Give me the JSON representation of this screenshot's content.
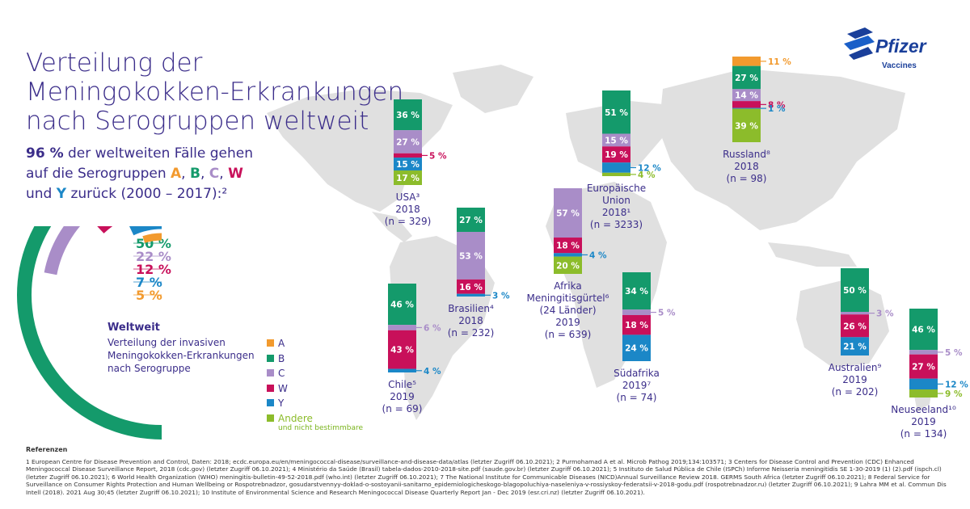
{
  "title": "Verteilung der Meningokokken-Erkrankungen nach Serogruppen weltweit",
  "subtitle": {
    "pct": "96 %",
    "text1": " der weltweiten Fälle gehen auf die Serogruppen ",
    "A": "A",
    "B": "B",
    "C": "C",
    "W": "W",
    "Y": "Y",
    "text2": " zurück (2000 – 2017):²"
  },
  "logo": {
    "word": "Pfizer",
    "sub": "Vaccines"
  },
  "colors": {
    "A": "#f29a2e",
    "B": "#149a6b",
    "C": "#a98dc8",
    "W": "#c8105a",
    "Y": "#1b87c7",
    "Andere": "#8cbc2b",
    "teal": "#149a6b",
    "map": "#dcdcdc"
  },
  "world": {
    "heading": "Weltweit",
    "text": "Verteilung der invasiven Meningokokken-Erkrankungen nach Serogruppe",
    "labels": [
      "50 %",
      "22 %",
      "12 %",
      "7 %",
      "5 %"
    ]
  },
  "legend": [
    {
      "key": "A",
      "label": "A"
    },
    {
      "key": "B",
      "label": "B"
    },
    {
      "key": "C",
      "label": "C"
    },
    {
      "key": "W",
      "label": "W"
    },
    {
      "key": "Y",
      "label": "Y"
    },
    {
      "key": "Andere",
      "label": "Andere",
      "sub": "und nicht bestimmbare"
    }
  ],
  "chart_data": {
    "type": "bar",
    "title": "Verteilung der Meningokokken-Erkrankungen nach Serogruppen weltweit",
    "world_distribution": {
      "categories": [
        "B",
        "C",
        "W",
        "Y",
        "A"
      ],
      "values": [
        50,
        22,
        12,
        7,
        5
      ]
    },
    "countries": [
      {
        "id": "usa",
        "caption": [
          "USA³",
          "2018",
          "(n = 329)"
        ],
        "segments": [
          {
            "key": "B",
            "value": 36,
            "label": "36 %"
          },
          {
            "key": "C",
            "value": 27,
            "label": "27 %"
          },
          {
            "key": "W",
            "value": 5,
            "label": "5 %"
          },
          {
            "key": "Y",
            "value": 15,
            "label": "15 %"
          },
          {
            "key": "Andere",
            "value": 17,
            "label": "17 %"
          }
        ]
      },
      {
        "id": "chile",
        "caption": [
          "Chile⁵",
          "2019",
          "(n = 69)"
        ],
        "segments": [
          {
            "key": "B",
            "value": 46,
            "label": "46 %"
          },
          {
            "key": "C",
            "value": 6,
            "label": "6 %"
          },
          {
            "key": "W",
            "value": 43,
            "label": "43 %"
          },
          {
            "key": "Y",
            "value": 4,
            "label": "4 %"
          }
        ]
      },
      {
        "id": "brasilien",
        "caption": [
          "Brasilien⁴",
          "2018",
          "(n = 232)"
        ],
        "segments": [
          {
            "key": "B",
            "value": 27,
            "label": "27 %"
          },
          {
            "key": "C",
            "value": 53,
            "label": "53 %"
          },
          {
            "key": "W",
            "value": 16,
            "label": "16 %"
          },
          {
            "key": "Y",
            "value": 3,
            "label": "3 %"
          }
        ]
      },
      {
        "id": "afrika",
        "caption": [
          "Afrika",
          "Meningitisgürtel⁶",
          "(24 Länder)",
          "2019",
          "(n = 639)"
        ],
        "segments": [
          {
            "key": "C",
            "value": 57,
            "label": "57 %"
          },
          {
            "key": "W",
            "value": 18,
            "label": "18 %"
          },
          {
            "key": "Y",
            "value": 4,
            "label": "4 %"
          },
          {
            "key": "Andere",
            "value": 20,
            "label": "20 %"
          }
        ]
      },
      {
        "id": "eu",
        "caption": [
          "Europäische",
          "Union",
          "2018¹",
          "(n = 3233)"
        ],
        "segments": [
          {
            "key": "B",
            "value": 51,
            "label": "51 %"
          },
          {
            "key": "C",
            "value": 15,
            "label": "15 %"
          },
          {
            "key": "W",
            "value": 19,
            "label": "19 %"
          },
          {
            "key": "Y",
            "value": 12,
            "label": "12 %"
          },
          {
            "key": "Andere",
            "value": 4,
            "label": "4 %"
          }
        ]
      },
      {
        "id": "suedafrika",
        "caption": [
          "Südafrika",
          "2019⁷",
          "(n = 74)"
        ],
        "segments": [
          {
            "key": "B",
            "value": 34,
            "label": "34 %"
          },
          {
            "key": "C",
            "value": 5,
            "label": "5 %"
          },
          {
            "key": "W",
            "value": 18,
            "label": "18 %"
          },
          {
            "key": "Y",
            "value": 24,
            "label": "24 %"
          }
        ]
      },
      {
        "id": "russland",
        "caption": [
          "Russland⁸",
          "2018",
          "(n = 98)"
        ],
        "segments": [
          {
            "key": "A",
            "value": 11,
            "label": "11 %"
          },
          {
            "key": "B",
            "value": 27,
            "label": "27 %"
          },
          {
            "key": "C",
            "value": 14,
            "label": "14 %"
          },
          {
            "key": "W",
            "value": 8,
            "label": "8 %"
          },
          {
            "key": "Y",
            "value": 1,
            "label": "1 %"
          },
          {
            "key": "Andere",
            "value": 39,
            "label": "39 %"
          }
        ]
      },
      {
        "id": "australien",
        "caption": [
          "Australien⁹",
          "2019",
          "(n = 202)"
        ],
        "segments": [
          {
            "key": "B",
            "value": 50,
            "label": "50 %"
          },
          {
            "key": "C",
            "value": 3,
            "label": "3 %"
          },
          {
            "key": "W",
            "value": 26,
            "label": "26 %"
          },
          {
            "key": "Y",
            "value": 21,
            "label": "21 %"
          }
        ]
      },
      {
        "id": "neuseeland",
        "caption": [
          "Neuseeland¹⁰",
          "2019",
          "(n = 134)"
        ],
        "segments": [
          {
            "key": "B",
            "value": 46,
            "label": "46 %"
          },
          {
            "key": "C",
            "value": 5,
            "label": "5 %"
          },
          {
            "key": "W",
            "value": 27,
            "label": "27 %"
          },
          {
            "key": "Y",
            "value": 12,
            "label": "12 %"
          },
          {
            "key": "Andere",
            "value": 9,
            "label": "9 %"
          }
        ]
      }
    ]
  },
  "references": {
    "heading": "Referenzen",
    "text": "1 European Centre for Disease Prevention and Control, Daten: 2018; ecdc.europa.eu/en/meningococcal-disease/surveillance-and-disease-data/atlas (letzter Zugriff 06.10.2021); 2 Purmohamad A et al. Microb Pathog 2019;134:103571; 3 Centers for Disease Control and Prevention (CDC) Enhanced Meningococcal Disease Surveillance Report, 2018 (cdc.gov) (letzter Zugriff 06.10.2021); 4 Ministério da Saúde (Brasil) tabela-dados-2010-2018-site.pdf (saude.gov.br) (letzter Zugriff 06.10.2021); 5 Instituto de Salud Pública de Chile (ISPCh) Informe Neisseria meningitidis SE 1-30-2019 (1) (2).pdf (ispch.cl) (letzter Zugriff 06.10.2021); 6 World Health Organization (WHO) meningitis-bulletin-49-52-2018.pdf (who.int) (letzter Zugriff 06.10.2021); 7 The National Institute for Communicable Diseases (NICD)Annual Surveillance Review 2018. GERMS South Africa (letzter Zugriff 06.10.2021); 8 Federal Service for Surveillance on Consumer Rights Protection and Human Wellbeing or Rospotrebnadzor, gosudarstvennyy-doklad-o-sostoyanii-sanitarno_epidemiologicheskogo-blagopoluchiya-naseleniya-v-rossiyskoy-federatsii-v-2018-godu.pdf (rospotrebnadzor.ru) (letzter Zugriff 06.10.2021); 9 Lahra MM et al. Commun Dis Intell (2018). 2021 Aug 30;45 (letzter Zugriff 06.10.2021); 10 Institute of Environmental Science and Research Meningococcal Disease Quarterly Report Jan - Dec 2019 (esr.cri.nz) (letzter Zugriff 06.10.2021)."
  }
}
